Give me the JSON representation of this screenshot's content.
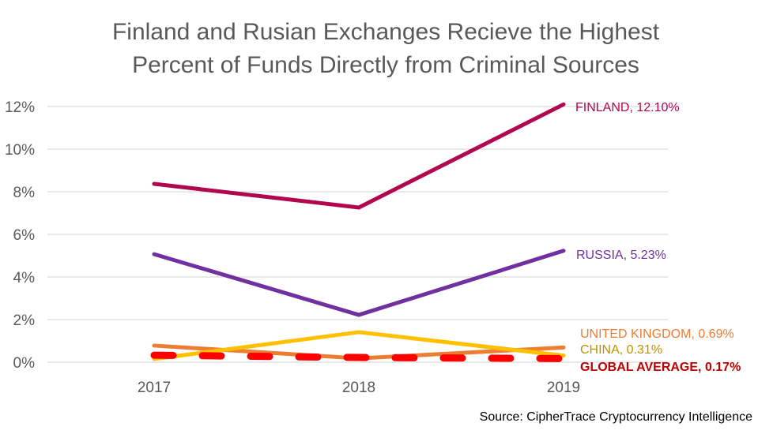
{
  "chart_data": {
    "type": "line",
    "title": [
      "Finland and Rusian Exchanges Recieve the Highest",
      "Percent of Funds Directly from Criminal Sources"
    ],
    "categories": [
      "2017",
      "2018",
      "2019"
    ],
    "ylim": [
      0,
      12
    ],
    "yticks": [
      "0%",
      "2%",
      "4%",
      "6%",
      "8%",
      "10%",
      "12%"
    ],
    "grid": true,
    "series": [
      {
        "name": "FINLAND",
        "values": [
          8.37,
          7.26,
          12.1
        ],
        "color": "#B0074F",
        "label_color": "#B0074F",
        "end_label": "FINLAND, 12.10%"
      },
      {
        "name": "RUSSIA",
        "values": [
          5.07,
          2.22,
          5.23
        ],
        "color": "#7030A0",
        "label_color": "#7030A0",
        "end_label": "RUSSIA, 5.23%"
      },
      {
        "name": "UNITED KINGDOM",
        "values": [
          0.78,
          0.18,
          0.69
        ],
        "color": "#ED7D31",
        "label_color": "#ED7D31",
        "end_label": "UNITED KINGDOM, 0.69%"
      },
      {
        "name": "CHINA",
        "values": [
          0.15,
          1.41,
          0.31
        ],
        "color": "#FFC000",
        "label_color": "#BF9000",
        "end_label": "CHINA, 0.31%"
      },
      {
        "name": "GLOBAL AVERAGE",
        "values": [
          0.33,
          0.22,
          0.17
        ],
        "color": "#FF0000",
        "label_color": "#C00000",
        "end_label": "GLOBAL AVERAGE, 0.17%",
        "dashed": true,
        "bold_label": true
      }
    ],
    "source": "Source: CipherTrace Cryptocurrency Intelligence"
  }
}
